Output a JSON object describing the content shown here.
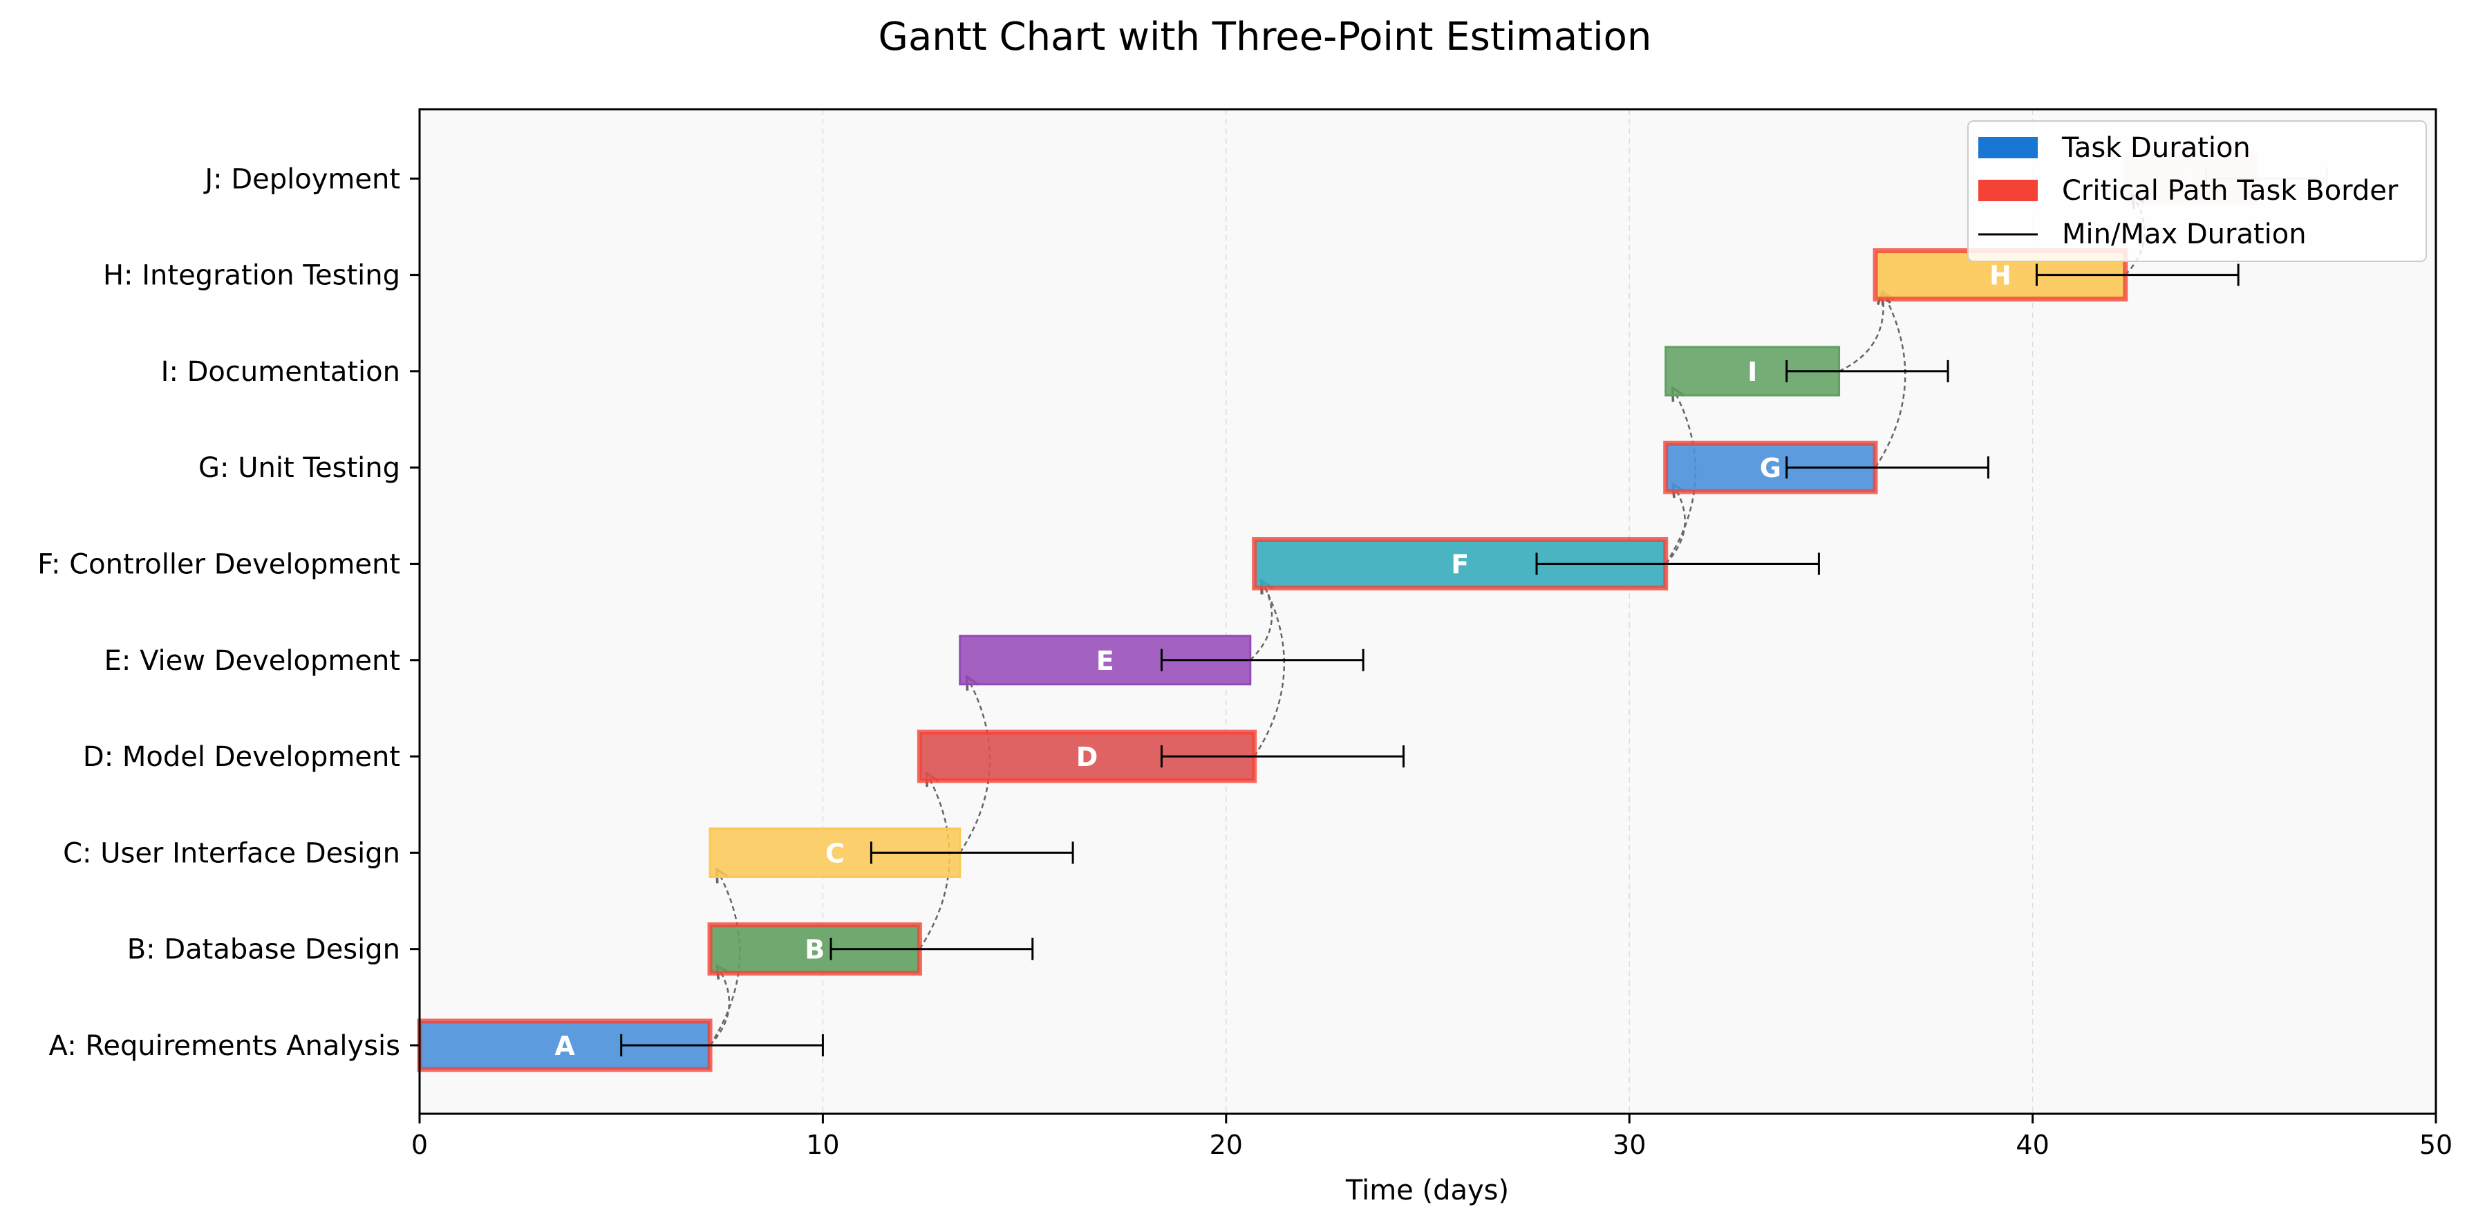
{
  "chart_data": {
    "type": "gantt",
    "title": "Gantt Chart with Three-Point Estimation",
    "xlabel": "Time (days)",
    "ylabel": "",
    "xlim": [
      0,
      50
    ],
    "xticks": [
      "0",
      "10",
      "20",
      "30",
      "40",
      "50"
    ],
    "grid": "vertical dashed",
    "legend_position": "top-right",
    "legend": [
      {
        "label": "Task Duration",
        "type": "patch",
        "color": "#1976D2"
      },
      {
        "label": "Critical Path Task Border",
        "type": "patch",
        "color": "#F44336"
      },
      {
        "label": "Min/Max Duration",
        "type": "line",
        "color": "#000000"
      }
    ],
    "tasks": [
      {
        "id": "A",
        "name": "A: Requirements Analysis",
        "start": 0,
        "duration": 7.2,
        "min": 5.0,
        "max": 10.0,
        "color": "#4A90D9",
        "critical": true
      },
      {
        "id": "B",
        "name": "B: Database Design",
        "start": 7.2,
        "duration": 5.2,
        "min": 10.2,
        "max": 15.2,
        "color": "#5FA05F",
        "critical": true
      },
      {
        "id": "C",
        "name": "C: User Interface Design",
        "start": 7.2,
        "duration": 6.2,
        "min": 11.2,
        "max": 16.2,
        "color": "#FBC853",
        "critical": false
      },
      {
        "id": "D",
        "name": "D: Model Development",
        "start": 12.4,
        "duration": 8.3,
        "min": 18.4,
        "max": 24.4,
        "color": "#DD5252",
        "critical": true
      },
      {
        "id": "E",
        "name": "E: View Development",
        "start": 13.4,
        "duration": 7.2,
        "min": 18.4,
        "max": 23.4,
        "color": "#9448B8",
        "critical": false
      },
      {
        "id": "F",
        "name": "F: Controller Development",
        "start": 20.7,
        "duration": 10.2,
        "min": 27.7,
        "max": 34.7,
        "color": "#36ACBD",
        "critical": true
      },
      {
        "id": "G",
        "name": "G: Unit Testing",
        "start": 30.9,
        "duration": 5.2,
        "min": 33.9,
        "max": 38.9,
        "color": "#4A90D9",
        "critical": true
      },
      {
        "id": "I",
        "name": "I: Documentation",
        "start": 30.9,
        "duration": 4.3,
        "min": 33.9,
        "max": 37.9,
        "color": "#5FA05F",
        "critical": false
      },
      {
        "id": "H",
        "name": "H: Integration Testing",
        "start": 36.1,
        "duration": 6.2,
        "min": 40.1,
        "max": 45.1,
        "color": "#FBC853",
        "critical": true
      },
      {
        "id": "J",
        "name": "J: Deployment",
        "start": 42.3,
        "duration": 3.2,
        "min": 44.3,
        "max": 47.3,
        "color": "#E15759",
        "critical": true
      }
    ],
    "dependencies": [
      [
        "A",
        "B"
      ],
      [
        "A",
        "C"
      ],
      [
        "B",
        "D"
      ],
      [
        "C",
        "E"
      ],
      [
        "D",
        "F"
      ],
      [
        "E",
        "F"
      ],
      [
        "F",
        "G"
      ],
      [
        "F",
        "I"
      ],
      [
        "G",
        "H"
      ],
      [
        "I",
        "H"
      ],
      [
        "H",
        "J"
      ]
    ]
  }
}
